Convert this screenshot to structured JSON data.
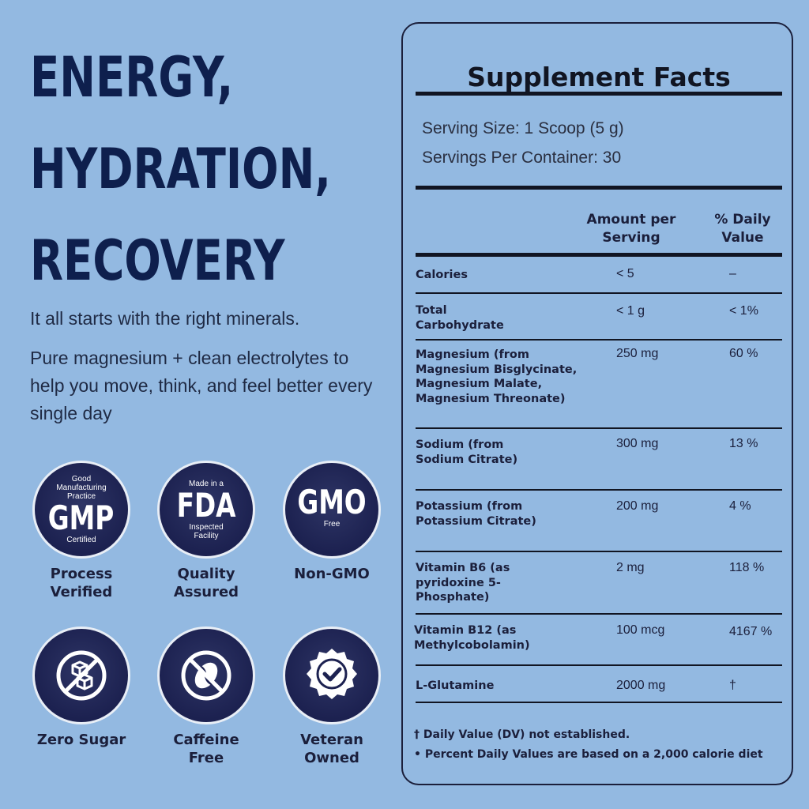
{
  "headline": [
    "ENERGY,",
    "HYDRATION,",
    "RECOVERY"
  ],
  "tagline": "It all starts with the right minerals.",
  "subtext": "Pure magnesium + clean electrolytes to help you move, think, and feel better every single day",
  "badges": [
    {
      "top": "Good Manufacturing Practice",
      "big": "GMP",
      "bottom": "Certified",
      "caption": "Process Verified",
      "icon": "gmp-seal-icon"
    },
    {
      "top": "Made in a",
      "big": "FDA",
      "bottom": "Inspected Facility",
      "caption": "Quality Assured",
      "icon": "fda-seal-icon"
    },
    {
      "top": "",
      "big": "GMO",
      "bottom": "Free",
      "caption": "Non-GMO",
      "icon": "gmo-free-seal-icon"
    },
    {
      "caption": "Zero Sugar",
      "icon": "no-sugar-cubes-icon"
    },
    {
      "caption": "Caffeine Free",
      "icon": "no-coffee-bean-icon"
    },
    {
      "caption": "Veteran Owned",
      "icon": "checkmark-seal-icon"
    }
  ],
  "facts": {
    "title": "Supplement Facts",
    "serving_size": "Serving Size: 1 Scoop (5 g)",
    "servings_per_container": "Servings Per Container: 30",
    "col_amount": "Amount per Serving",
    "col_dv": "% Daily Value",
    "rows": [
      {
        "label": "Calories",
        "amount": "< 5",
        "dv": "–"
      },
      {
        "label": "Total Carbohydrate",
        "amount": "< 1 g",
        "dv": "< 1%"
      },
      {
        "label": "Magnesium (from Magnesium Bisglycinate, Magnesium Malate, Magnesium Threonate)",
        "amount": "250 mg",
        "dv": "60 %"
      },
      {
        "label": "Sodium (from Sodium Citrate)",
        "amount": "300 mg",
        "dv": "13 %"
      },
      {
        "label": "Potassium (from Potassium Citrate)",
        "amount": "200 mg",
        "dv": "4 %"
      },
      {
        "label": "Vitamin B6 (as pyridoxine 5-Phosphate)",
        "amount": "2 mg",
        "dv": "118 %"
      },
      {
        "label": "Vitamin B12 (as Methylcobolamin)",
        "amount": "100 mcg",
        "dv": "4167 %"
      },
      {
        "label": "L-Glutamine",
        "amount": "2000 mg",
        "dv": "†"
      }
    ],
    "footnote_1": "† Daily Value (DV) not established.",
    "footnote_2": "• Percent Daily Values are based on a 2,000 calorie diet"
  }
}
